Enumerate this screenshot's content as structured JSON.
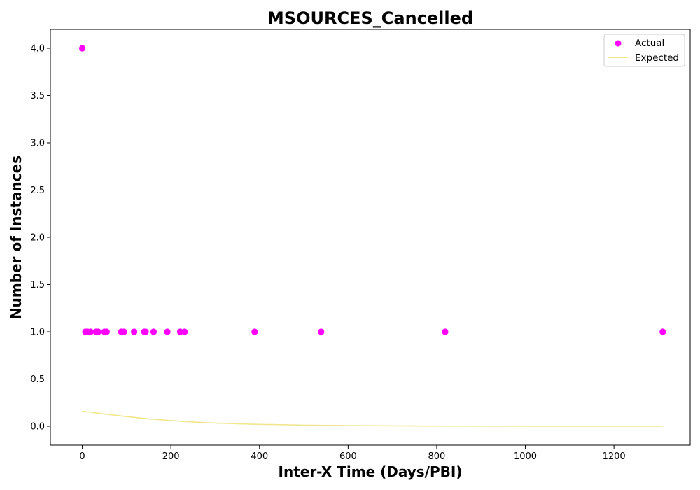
{
  "chart_data": {
    "type": "scatter",
    "title": "MSOURCES_Cancelled",
    "xlabel": "Inter-X Time (Days/PBI)",
    "ylabel": "Number of Instances",
    "xlim": [
      -72,
      1372
    ],
    "ylim": [
      -0.2,
      4.2
    ],
    "xticks": [
      0,
      200,
      400,
      600,
      800,
      1000,
      1200
    ],
    "xtick_labels": [
      "0",
      "200",
      "400",
      "600",
      "800",
      "1000",
      "1200"
    ],
    "yticks": [
      0.0,
      0.5,
      1.0,
      1.5,
      2.0,
      2.5,
      3.0,
      3.5,
      4.0
    ],
    "ytick_labels": [
      "0.0",
      "0.5",
      "1.0",
      "1.5",
      "2.0",
      "2.5",
      "3.0",
      "3.5",
      "4.0"
    ],
    "grid": false,
    "legend": {
      "placement": "top-right",
      "entries": [
        "Actual",
        "Expected"
      ]
    },
    "series": [
      {
        "name": "Actual",
        "kind": "scatter",
        "color": "#ff00ff",
        "points": [
          {
            "x": 0,
            "y": 4
          },
          {
            "x": 7,
            "y": 1
          },
          {
            "x": 12,
            "y": 1
          },
          {
            "x": 19,
            "y": 1
          },
          {
            "x": 31,
            "y": 1
          },
          {
            "x": 36,
            "y": 1
          },
          {
            "x": 50,
            "y": 1
          },
          {
            "x": 55,
            "y": 1
          },
          {
            "x": 88,
            "y": 1
          },
          {
            "x": 94,
            "y": 1
          },
          {
            "x": 117,
            "y": 1
          },
          {
            "x": 140,
            "y": 1
          },
          {
            "x": 143,
            "y": 1
          },
          {
            "x": 161,
            "y": 1
          },
          {
            "x": 192,
            "y": 1
          },
          {
            "x": 221,
            "y": 1
          },
          {
            "x": 231,
            "y": 1
          },
          {
            "x": 389,
            "y": 1
          },
          {
            "x": 539,
            "y": 1
          },
          {
            "x": 819,
            "y": 1
          },
          {
            "x": 1310,
            "y": 1
          }
        ]
      },
      {
        "name": "Expected",
        "kind": "line",
        "color": "#f0e68c",
        "points": [
          {
            "x": 0,
            "y": 0.16
          },
          {
            "x": 50,
            "y": 0.13
          },
          {
            "x": 100,
            "y": 0.102
          },
          {
            "x": 150,
            "y": 0.078
          },
          {
            "x": 200,
            "y": 0.06
          },
          {
            "x": 250,
            "y": 0.045
          },
          {
            "x": 300,
            "y": 0.034
          },
          {
            "x": 350,
            "y": 0.026
          },
          {
            "x": 400,
            "y": 0.02
          },
          {
            "x": 500,
            "y": 0.012
          },
          {
            "x": 600,
            "y": 0.007
          },
          {
            "x": 700,
            "y": 0.004
          },
          {
            "x": 800,
            "y": 0.002
          },
          {
            "x": 900,
            "y": 0.001
          },
          {
            "x": 1000,
            "y": 0.0006
          },
          {
            "x": 1100,
            "y": 0.0003
          },
          {
            "x": 1200,
            "y": 0.0002
          },
          {
            "x": 1310,
            "y": 0.0001
          }
        ]
      }
    ]
  }
}
